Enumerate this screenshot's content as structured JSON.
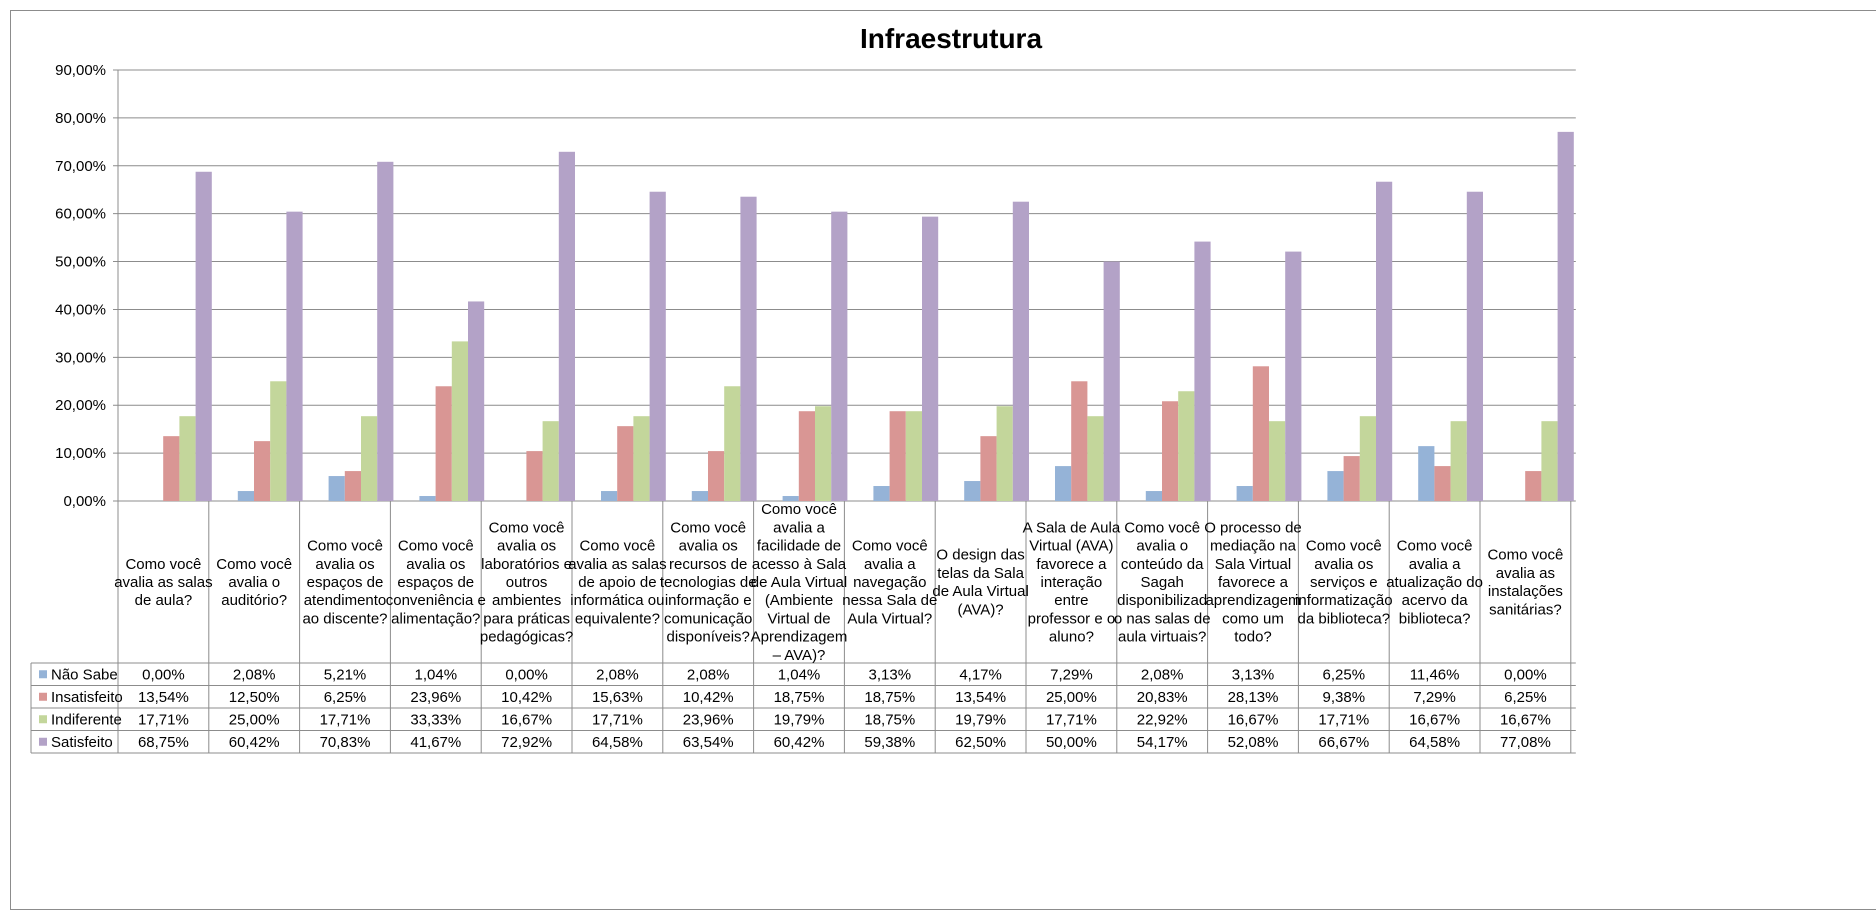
{
  "chart_data": {
    "type": "bar",
    "title": "Infraestrutura",
    "ylim": [
      0,
      90
    ],
    "y_tick_labels": [
      "0,00%",
      "10,00%",
      "20,00%",
      "30,00%",
      "40,00%",
      "50,00%",
      "60,00%",
      "70,00%",
      "80,00%",
      "90,00%"
    ],
    "grid": true,
    "legend": "data-table",
    "categories": [
      "Como você avalia as salas de aula?",
      "Como você avalia o auditório?",
      "Como você avalia os espaços de atendimento ao discente?",
      "Como você avalia os espaços de conveniência e alimentação?",
      "Como você avalia os laboratórios e outros ambientes para práticas pedagógicas?",
      "Como você avalia as salas de apoio de informática ou equivalente?",
      "Como você avalia os recursos de tecnologias de informação e comunicação disponíveis?",
      "Como você avalia a facilidade de acesso à Sala de Aula Virtual (Ambiente Virtual de Aprendizagem – AVA)?",
      "Como você avalia a navegação nessa Sala de Aula Virtual?",
      "O design das telas da Sala de Aula Virtual (AVA)?",
      "A Sala de Aula Virtual (AVA) favorece a interação entre professor e o aluno?",
      "Como você avalia o conteúdo da Sagah disponibilizado nas salas de aula virtuais?",
      "O processo de mediação na Sala Virtual favorece a aprendizagem como um todo?",
      "Como você avalia os serviços e informatização da biblioteca?",
      "Como você avalia a atualização do acervo da biblioteca?",
      "Como você avalia as instalações sanitárias?"
    ],
    "category_lines": [
      [
        "Como você",
        "avalia as salas",
        "de aula?"
      ],
      [
        "Como você",
        "avalia o",
        "auditório?"
      ],
      [
        "Como você",
        "avalia os",
        "espaços de",
        "atendimento",
        "ao discente?"
      ],
      [
        "Como você",
        "avalia os",
        "espaços de",
        "conveniência e",
        "alimentação?"
      ],
      [
        "Como você",
        "avalia os",
        "laboratórios e",
        "outros",
        "ambientes",
        "para práticas",
        "pedagógicas?"
      ],
      [
        "Como você",
        "avalia as salas",
        "de apoio de",
        "informática ou",
        "equivalente?"
      ],
      [
        "Como você",
        "avalia os",
        "recursos de",
        "tecnologias de",
        "informação e",
        "comunicação",
        "disponíveis?"
      ],
      [
        "Como você",
        "avalia a",
        "facilidade de",
        "acesso à Sala",
        "de Aula Virtual",
        "(Ambiente",
        "Virtual de",
        "Aprendizagem",
        "– AVA)?"
      ],
      [
        "Como você",
        "avalia a",
        "navegação",
        "nessa Sala de",
        "Aula Virtual?"
      ],
      [
        "O design das",
        "telas da Sala",
        "de Aula Virtual",
        "(AVA)?"
      ],
      [
        "A Sala de Aula",
        "Virtual (AVA)",
        "favorece a",
        "interação",
        "entre",
        "professor e o",
        "aluno?"
      ],
      [
        "Como você",
        "avalia o",
        "conteúdo da",
        "Sagah",
        "disponibilizad",
        "o nas salas de",
        "aula virtuais?"
      ],
      [
        "O processo de",
        "mediação na",
        "Sala Virtual",
        "favorece a",
        "aprendizagem",
        "como um",
        "todo?"
      ],
      [
        "Como você",
        "avalia os",
        "serviços e",
        "informatização",
        "da biblioteca?"
      ],
      [
        "Como você",
        "avalia a",
        "atualização do",
        "acervo da",
        "biblioteca?"
      ],
      [
        "Como você",
        "avalia as",
        "instalações",
        "sanitárias?"
      ]
    ],
    "series": [
      {
        "name": "Não Sabe",
        "color": "#95B3D7",
        "values": [
          0.0,
          2.08,
          5.21,
          1.04,
          0.0,
          2.08,
          2.08,
          1.04,
          3.13,
          4.17,
          7.29,
          2.08,
          3.13,
          6.25,
          11.46,
          0.0
        ],
        "labels": [
          "0,00%",
          "2,08%",
          "5,21%",
          "1,04%",
          "0,00%",
          "2,08%",
          "2,08%",
          "1,04%",
          "3,13%",
          "4,17%",
          "7,29%",
          "2,08%",
          "3,13%",
          "6,25%",
          "11,46%",
          "0,00%"
        ]
      },
      {
        "name": "Insatisfeito",
        "color": "#D99694",
        "values": [
          13.54,
          12.5,
          6.25,
          23.96,
          10.42,
          15.63,
          10.42,
          18.75,
          18.75,
          13.54,
          25.0,
          20.83,
          28.13,
          9.38,
          7.29,
          6.25
        ],
        "labels": [
          "13,54%",
          "12,50%",
          "6,25%",
          "23,96%",
          "10,42%",
          "15,63%",
          "10,42%",
          "18,75%",
          "18,75%",
          "13,54%",
          "25,00%",
          "20,83%",
          "28,13%",
          "9,38%",
          "7,29%",
          "6,25%"
        ]
      },
      {
        "name": "Indiferente",
        "color": "#C3D69B",
        "values": [
          17.71,
          25.0,
          17.71,
          33.33,
          16.67,
          17.71,
          23.96,
          19.79,
          18.75,
          19.79,
          17.71,
          22.92,
          16.67,
          17.71,
          16.67,
          16.67
        ],
        "labels": [
          "17,71%",
          "25,00%",
          "17,71%",
          "33,33%",
          "16,67%",
          "17,71%",
          "23,96%",
          "19,79%",
          "18,75%",
          "19,79%",
          "17,71%",
          "22,92%",
          "16,67%",
          "17,71%",
          "16,67%",
          "16,67%"
        ]
      },
      {
        "name": "Satisfeito",
        "color": "#B3A2C7",
        "values": [
          68.75,
          60.42,
          70.83,
          41.67,
          72.92,
          64.58,
          63.54,
          60.42,
          59.38,
          62.5,
          50.0,
          54.17,
          52.08,
          66.67,
          64.58,
          77.08
        ],
        "labels": [
          "68,75%",
          "60,42%",
          "70,83%",
          "41,67%",
          "72,92%",
          "64,58%",
          "63,54%",
          "60,42%",
          "59,38%",
          "62,50%",
          "50,00%",
          "54,17%",
          "52,08%",
          "66,67%",
          "64,58%",
          "77,08%"
        ]
      }
    ]
  }
}
